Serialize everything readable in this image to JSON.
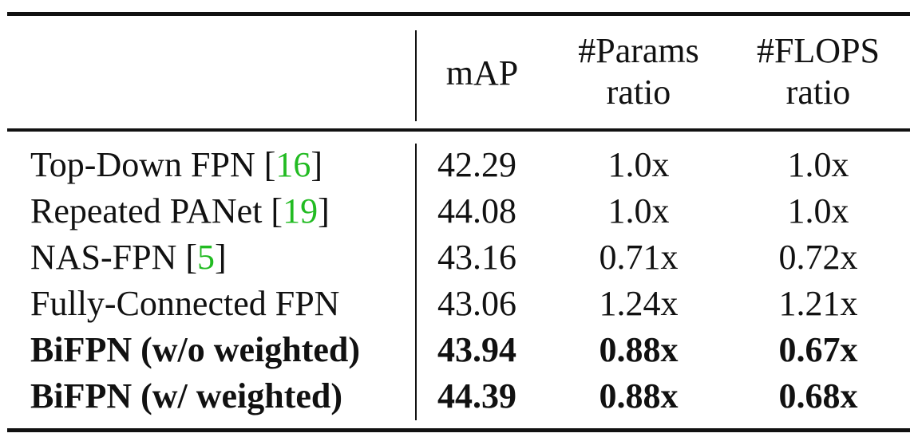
{
  "table": {
    "headers": {
      "method": "",
      "map": "mAP",
      "params": [
        "#Params",
        "ratio"
      ],
      "flops": [
        "#FLOPS",
        "ratio"
      ]
    },
    "rows": [
      {
        "name": "Top-Down FPN [",
        "cite": "16",
        "close": "]",
        "map": "42.29",
        "params": "1.0x",
        "flops": "1.0x",
        "bold": false
      },
      {
        "name": "Repeated PANet [",
        "cite": "19",
        "close": "]",
        "map": "44.08",
        "params": "1.0x",
        "flops": "1.0x",
        "bold": false
      },
      {
        "name": "NAS-FPN [",
        "cite": "5",
        "close": "]",
        "map": "43.16",
        "params": "0.71x",
        "flops": "0.72x",
        "bold": false
      },
      {
        "name": "Fully-Connected FPN",
        "cite": "",
        "close": "",
        "map": "43.06",
        "params": "1.24x",
        "flops": "1.21x",
        "bold": false
      },
      {
        "name": "BiFPN (w/o weighted)",
        "cite": "",
        "close": "",
        "map": "43.94",
        "params": "0.88x",
        "flops": "0.67x",
        "bold": true
      },
      {
        "name": "BiFPN (w/ weighted)",
        "cite": "",
        "close": "",
        "map": "44.39",
        "params": "0.88x",
        "flops": "0.68x",
        "bold": true
      }
    ],
    "colors": {
      "citation": "#22bb22",
      "text": "#111111"
    }
  }
}
